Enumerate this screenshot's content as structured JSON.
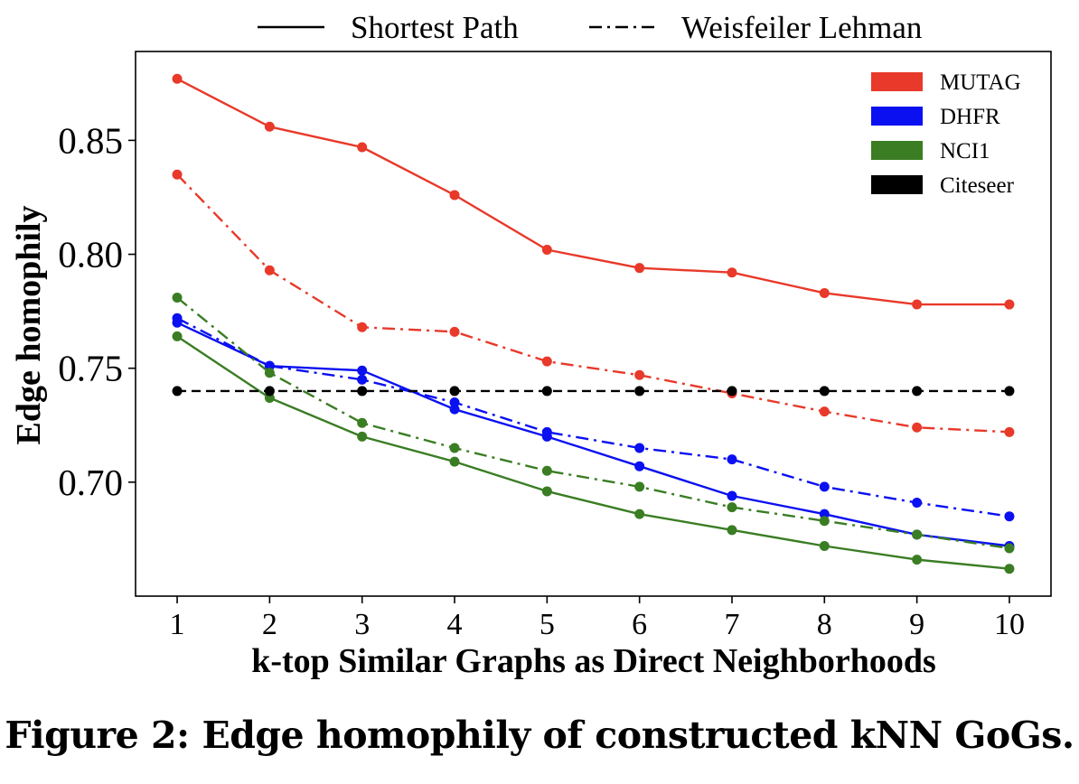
{
  "chart_data": {
    "type": "line",
    "xlabel": "k-top Similar Graphs as Direct Neighborhoods",
    "ylabel": "Edge homophily",
    "x": [
      1,
      2,
      3,
      4,
      5,
      6,
      7,
      8,
      9,
      10
    ],
    "x_ticks": [
      "1",
      "2",
      "3",
      "4",
      "5",
      "6",
      "7",
      "8",
      "9",
      "10"
    ],
    "y_ticks": [
      "0.70",
      "0.75",
      "0.80",
      "0.85"
    ],
    "y_tick_values": [
      0.7,
      0.75,
      0.8,
      0.85
    ],
    "xlim": [
      0.55,
      10.45
    ],
    "ylim": [
      0.65,
      0.889
    ],
    "grid": false,
    "line_styles": [
      {
        "name": "Shortest Path",
        "dash": "solid"
      },
      {
        "name": "Weisfeiler Lehman",
        "dash": "dashdot"
      }
    ],
    "datasets": [
      {
        "name": "MUTAG",
        "color": "#e8392a"
      },
      {
        "name": "DHFR",
        "color": "#0a10f0"
      },
      {
        "name": "NCI1",
        "color": "#3a7d23"
      },
      {
        "name": "Citeseer",
        "color": "#000000"
      }
    ],
    "line_legend_position": "above plot",
    "dataset_legend_position": "top-right",
    "series": [
      {
        "dataset": "MUTAG",
        "style": "Shortest Path",
        "color": "#e8392a",
        "dash": "solid",
        "values": [
          0.877,
          0.856,
          0.847,
          0.826,
          0.802,
          0.794,
          0.792,
          0.783,
          0.778,
          0.778
        ]
      },
      {
        "dataset": "MUTAG",
        "style": "Weisfeiler Lehman",
        "color": "#e8392a",
        "dash": "dashdot",
        "values": [
          0.835,
          0.793,
          0.768,
          0.766,
          0.753,
          0.747,
          0.739,
          0.731,
          0.724,
          0.722
        ]
      },
      {
        "dataset": "DHFR",
        "style": "Shortest Path",
        "color": "#0a10f0",
        "dash": "solid",
        "values": [
          0.77,
          0.751,
          0.749,
          0.732,
          0.72,
          0.707,
          0.694,
          0.686,
          0.677,
          0.672
        ]
      },
      {
        "dataset": "DHFR",
        "style": "Weisfeiler Lehman",
        "color": "#0a10f0",
        "dash": "dashdot",
        "values": [
          0.772,
          0.751,
          0.745,
          0.735,
          0.722,
          0.715,
          0.71,
          0.698,
          0.691,
          0.685
        ]
      },
      {
        "dataset": "NCI1",
        "style": "Shortest Path",
        "color": "#3a7d23",
        "dash": "solid",
        "values": [
          0.764,
          0.737,
          0.72,
          0.709,
          0.696,
          0.686,
          0.679,
          0.672,
          0.666,
          0.662
        ]
      },
      {
        "dataset": "NCI1",
        "style": "Weisfeiler Lehman",
        "color": "#3a7d23",
        "dash": "dashdot",
        "values": [
          0.781,
          0.748,
          0.726,
          0.715,
          0.705,
          0.698,
          0.689,
          0.683,
          0.677,
          0.671
        ]
      },
      {
        "dataset": "Citeseer",
        "style": "baseline",
        "color": "#000000",
        "dash": "dashed",
        "values": [
          0.74,
          0.74,
          0.74,
          0.74,
          0.74,
          0.74,
          0.74,
          0.74,
          0.74,
          0.74
        ]
      }
    ]
  },
  "caption": "Figure 2: Edge homophily of constructed kNN GoGs."
}
